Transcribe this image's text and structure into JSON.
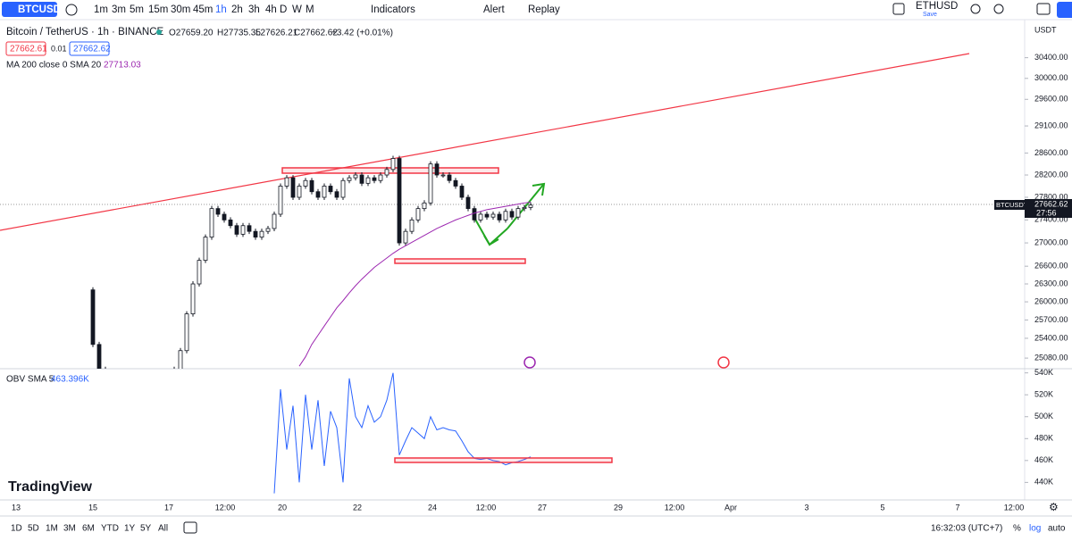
{
  "toolbar": {
    "symbol": "BTCUSDT",
    "intervals": [
      "1m",
      "3m",
      "5m",
      "15m",
      "30m",
      "45m",
      "1h",
      "2h",
      "3h",
      "4h",
      "D",
      "W",
      "M"
    ],
    "indicators": "Indicators",
    "alert": "Alert",
    "replay": "Replay",
    "layout_symbol": "ETHUSD",
    "save": "Save"
  },
  "legend": {
    "title": "Bitcoin / TetherUS · 1h · BINANCE",
    "open": "O27659.20",
    "high": "H27735.35",
    "low": "L27626.21",
    "close": "C27662.62",
    "change": "+3.42 (+0.01%)",
    "bid": "27662.61",
    "spread": "0.01",
    "ask": "27662.62",
    "ma_label": "MA 200 close 0 SMA 20",
    "ma_value": "27713.03",
    "obv_label": "OBV SMA 5",
    "obv_value": "463.396K",
    "currency": "USDT",
    "price_tag": "27662.62",
    "countdown": "27:56"
  },
  "chart_data": [
    {
      "type": "candlestick",
      "log": true,
      "ylim": [
        24910,
        31150
      ],
      "yticks": [
        {
          "value": 30400,
          "label": "30400.00"
        },
        {
          "value": 30000,
          "label": "30000.00"
        },
        {
          "value": 29600,
          "label": "29600.00"
        },
        {
          "value": 29100,
          "label": "29100.00"
        },
        {
          "value": 28600,
          "label": "28600.00"
        },
        {
          "value": 28200,
          "label": "28200.00"
        },
        {
          "value": 27800,
          "label": "27800.00"
        },
        {
          "value": 27400,
          "label": "27400.00"
        },
        {
          "value": 27000,
          "label": "27000.00"
        },
        {
          "value": 26600,
          "label": "26600.00"
        },
        {
          "value": 26300,
          "label": "26300.00"
        },
        {
          "value": 26000,
          "label": "26000.00"
        },
        {
          "value": 25700,
          "label": "25700.00"
        },
        {
          "value": 25400,
          "label": "25400.00"
        },
        {
          "value": 25080,
          "label": "25080.00"
        }
      ],
      "series": [
        {
          "name": "BTCUSDT",
          "color": "#131722",
          "values": [
            26200,
            25300,
            24900,
            24850,
            24800,
            24750,
            24800,
            24850,
            24800,
            24750,
            24800,
            24850,
            24800,
            24850,
            24900,
            25200,
            25800,
            26300,
            26700,
            27100,
            27600,
            27500,
            27400,
            27300,
            27150,
            27300,
            27200,
            27100,
            27200,
            27250,
            27500,
            28000,
            28150,
            27800,
            28000,
            28100,
            27900,
            27800,
            28000,
            27900,
            27800,
            28100,
            28150,
            28200,
            28050,
            28150,
            28100,
            28200,
            28300,
            28500,
            27000,
            27200,
            27400,
            27600,
            27700,
            28400,
            28200,
            28200,
            28100,
            28000,
            27800,
            27600,
            27400,
            27500,
            27450,
            27500,
            27400,
            27550,
            27450,
            27600,
            27620,
            27662.62
          ]
        },
        {
          "name": "MA 200 close 0 SMA 20",
          "color": "#9c27b0",
          "values": [
            null,
            null,
            null,
            null,
            null,
            null,
            null,
            null,
            null,
            null,
            null,
            null,
            null,
            null,
            null,
            null,
            null,
            null,
            null,
            null,
            null,
            null,
            null,
            null,
            null,
            null,
            null,
            null,
            null,
            null,
            null,
            null,
            null,
            null,
            24950,
            25100,
            25300,
            25450,
            25600,
            25750,
            25900,
            26020,
            26150,
            26270,
            26380,
            26480,
            26580,
            26660,
            26740,
            26820,
            26890,
            26950,
            27010,
            27070,
            27130,
            27190,
            27250,
            27300,
            27350,
            27400,
            27440,
            27480,
            27520,
            27550,
            27580,
            27600,
            27620,
            27640,
            27660,
            27680,
            27700,
            27713.03
          ]
        }
      ]
    },
    {
      "type": "line",
      "ylim": [
        424,
        543
      ],
      "yticks": [
        {
          "value": 540,
          "label": "540K"
        },
        {
          "value": 520,
          "label": "520K"
        },
        {
          "value": 500,
          "label": "500K"
        },
        {
          "value": 480,
          "label": "480K"
        },
        {
          "value": 460,
          "label": "460K"
        },
        {
          "value": 440,
          "label": "440K"
        }
      ],
      "series": [
        {
          "name": "OBV SMA 5",
          "color": "#2962ff",
          "values": [
            null,
            null,
            null,
            null,
            null,
            null,
            null,
            null,
            null,
            null,
            null,
            null,
            null,
            null,
            null,
            null,
            null,
            null,
            null,
            null,
            null,
            null,
            null,
            null,
            null,
            null,
            null,
            null,
            null,
            null,
            430,
            525,
            470,
            510,
            440,
            520,
            470,
            515,
            455,
            505,
            490,
            440,
            535,
            500,
            490,
            510,
            495,
            500,
            515,
            540,
            465,
            478,
            490,
            485,
            480,
            500,
            488,
            490,
            488,
            487,
            478,
            468,
            462,
            461,
            462,
            460,
            459,
            456,
            458,
            459,
            461,
            463.396
          ]
        }
      ]
    }
  ],
  "time_axis": {
    "labels": [
      "13",
      "15",
      "17",
      "12:00",
      "20",
      "22",
      "24",
      "12:00",
      "27",
      "29",
      "12:00",
      "Apr",
      "3",
      "5",
      "7",
      "12:00"
    ]
  },
  "bottom_bar": {
    "ranges": [
      "1D",
      "5D",
      "1M",
      "3M",
      "6M",
      "YTD",
      "1Y",
      "5Y",
      "All"
    ],
    "clock": "16:32:03 (UTC+7)",
    "percent": "%",
    "log": "log",
    "auto": "auto"
  },
  "watermark": "TradingView"
}
